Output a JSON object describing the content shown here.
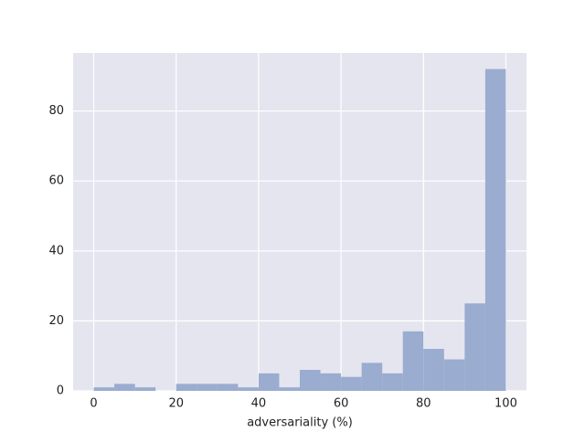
{
  "chart_data": {
    "type": "histogram",
    "xlabel": "adversariality (%)",
    "bins": [
      0,
      5,
      10,
      15,
      20,
      25,
      30,
      35,
      40,
      45,
      50,
      55,
      60,
      65,
      70,
      75,
      80,
      85,
      90,
      95,
      100
    ],
    "values": [
      1,
      2,
      1,
      0,
      2,
      2,
      2,
      1,
      5,
      1,
      6,
      5,
      4,
      8,
      5,
      17,
      12,
      9,
      25,
      92
    ],
    "color": "#9aaccf",
    "background": "#e5e5f0",
    "grid": true,
    "xlim": [
      -5,
      105
    ],
    "xticks": [
      0,
      20,
      40,
      60,
      80,
      100
    ],
    "ylim": [
      0,
      96.6
    ],
    "yticks": [
      0,
      20,
      40,
      60,
      80
    ]
  }
}
